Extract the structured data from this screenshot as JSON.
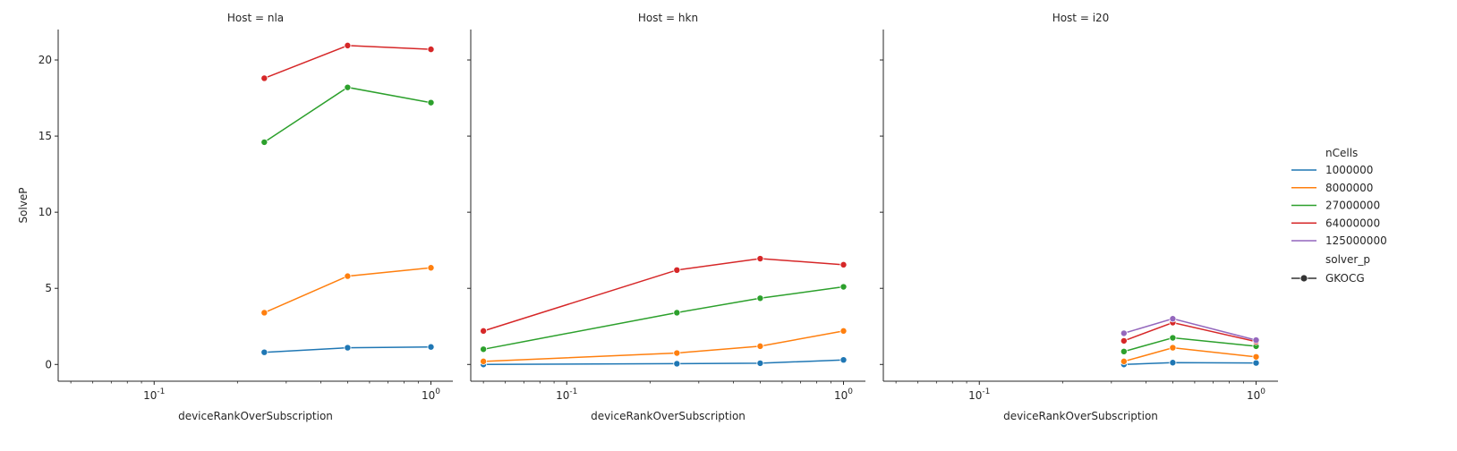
{
  "chart_data": [
    {
      "type": "line",
      "title": "Host = nla",
      "xlabel": "deviceRankOverSubscription",
      "ylabel": "SolveP",
      "xscale": "log",
      "xlim": [
        0.045,
        1.2
      ],
      "ylim": [
        -1.1,
        22
      ],
      "xticks": [
        0.1,
        1
      ],
      "xtick_labels": [
        "10^-1",
        "10^0"
      ],
      "yticks": [
        0,
        5,
        10,
        15,
        20
      ],
      "ytick_labels": [
        "0",
        "5",
        "10",
        "15",
        "20"
      ],
      "grid": false,
      "series": [
        {
          "name": "1000000",
          "x": [
            0.25,
            0.5,
            1.0
          ],
          "y": [
            0.8,
            1.1,
            1.15
          ]
        },
        {
          "name": "8000000",
          "x": [
            0.25,
            0.5,
            1.0
          ],
          "y": [
            3.4,
            5.8,
            6.35
          ]
        },
        {
          "name": "27000000",
          "x": [
            0.25,
            0.5,
            1.0
          ],
          "y": [
            14.6,
            18.2,
            17.2
          ]
        },
        {
          "name": "64000000",
          "x": [
            0.25,
            0.5,
            1.0
          ],
          "y": [
            18.8,
            20.95,
            20.7
          ]
        }
      ]
    },
    {
      "type": "line",
      "title": "Host = hkn",
      "xlabel": "deviceRankOverSubscription",
      "ylabel": "",
      "xscale": "log",
      "xlim": [
        0.045,
        1.2
      ],
      "ylim": [
        -1.1,
        22
      ],
      "xticks": [
        0.1,
        1
      ],
      "xtick_labels": [
        "10^-1",
        "10^0"
      ],
      "grid": false,
      "series": [
        {
          "name": "1000000",
          "x": [
            0.05,
            0.25,
            0.5,
            1.0
          ],
          "y": [
            0.0,
            0.05,
            0.08,
            0.3
          ]
        },
        {
          "name": "8000000",
          "x": [
            0.05,
            0.25,
            0.5,
            1.0
          ],
          "y": [
            0.2,
            0.75,
            1.2,
            2.2
          ]
        },
        {
          "name": "27000000",
          "x": [
            0.05,
            0.25,
            0.5,
            1.0
          ],
          "y": [
            1.0,
            3.4,
            4.35,
            5.1
          ]
        },
        {
          "name": "64000000",
          "x": [
            0.05,
            0.25,
            0.5,
            1.0
          ],
          "y": [
            2.2,
            6.2,
            6.95,
            6.55
          ]
        }
      ]
    },
    {
      "type": "line",
      "title": "Host = i20",
      "xlabel": "deviceRankOverSubscription",
      "ylabel": "",
      "xscale": "log",
      "xlim": [
        0.045,
        1.2
      ],
      "ylim": [
        -1.1,
        22
      ],
      "xticks": [
        0.1,
        1
      ],
      "xtick_labels": [
        "10^-1",
        "10^0"
      ],
      "grid": false,
      "series": [
        {
          "name": "1000000",
          "x": [
            0.333,
            0.5,
            1.0
          ],
          "y": [
            0.0,
            0.12,
            0.1
          ]
        },
        {
          "name": "8000000",
          "x": [
            0.333,
            0.5,
            1.0
          ],
          "y": [
            0.2,
            1.1,
            0.5
          ]
        },
        {
          "name": "27000000",
          "x": [
            0.333,
            0.5,
            1.0
          ],
          "y": [
            0.85,
            1.75,
            1.2
          ]
        },
        {
          "name": "64000000",
          "x": [
            0.333,
            0.5,
            1.0
          ],
          "y": [
            1.55,
            2.75,
            1.5
          ]
        },
        {
          "name": "125000000",
          "x": [
            0.333,
            0.5,
            1.0
          ],
          "y": [
            2.05,
            3.0,
            1.6
          ]
        }
      ]
    }
  ],
  "legend": {
    "placement": "right",
    "hue_title": "nCells",
    "hue_entries": [
      "1000000",
      "8000000",
      "27000000",
      "64000000",
      "125000000"
    ],
    "style_title": "solver_p",
    "style_entries": [
      "GKOCG"
    ]
  },
  "colors": {
    "1000000": "#1f77b4",
    "8000000": "#ff7f0e",
    "27000000": "#2ca02c",
    "64000000": "#d62728",
    "125000000": "#9467bd",
    "axis": "#262626",
    "style_marker": "#333333"
  }
}
